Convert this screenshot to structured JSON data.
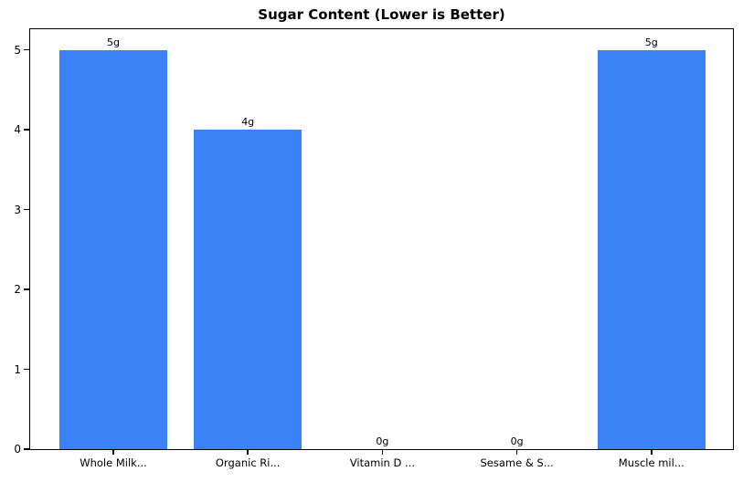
{
  "chart_data": {
    "type": "bar",
    "title": "Sugar Content (Lower is Better)",
    "categories": [
      "Whole Milk...",
      "Organic Ri...",
      "Vitamin D ...",
      "Sesame & S...",
      "Muscle mil..."
    ],
    "values": [
      5,
      4,
      0,
      0,
      5
    ],
    "bar_labels": [
      "5g",
      "4g",
      "0g",
      "0g",
      "5g"
    ],
    "xlabel": "",
    "ylabel": "",
    "yticks": [
      0,
      1,
      2,
      3,
      4,
      5
    ],
    "ytick_labels": [
      "0",
      "1",
      "2",
      "3",
      "4",
      "5"
    ],
    "ylim": [
      0,
      5.25
    ],
    "grid": false,
    "legend": false,
    "bar_color": "#3b82f6",
    "axis_color": "#000000",
    "text_color": "#000000",
    "background_color": "#ffffff"
  }
}
